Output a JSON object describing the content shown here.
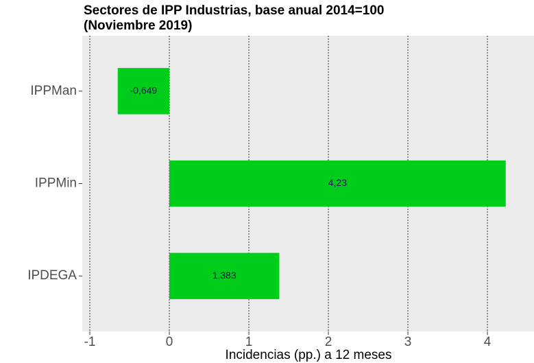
{
  "chart_data": {
    "type": "bar",
    "orientation": "horizontal",
    "title": "Sectores de IPP Industrias, base anual 2014=100",
    "subtitle": "(Noviembre 2019)",
    "x_label": "Incidencias (pp.) a 12 meses",
    "categories": [
      "IPPMan",
      "IPPMin",
      "IPDEGA"
    ],
    "values": [
      -0.649,
      4.23,
      1.383
    ],
    "value_labels": [
      "-0,649",
      "4,23",
      "1,383"
    ],
    "color": "#00cc1a",
    "xlim": [
      -1.095,
      4.586
    ],
    "xticks": [
      -1,
      0,
      1,
      2,
      3,
      4
    ],
    "grid": true
  }
}
